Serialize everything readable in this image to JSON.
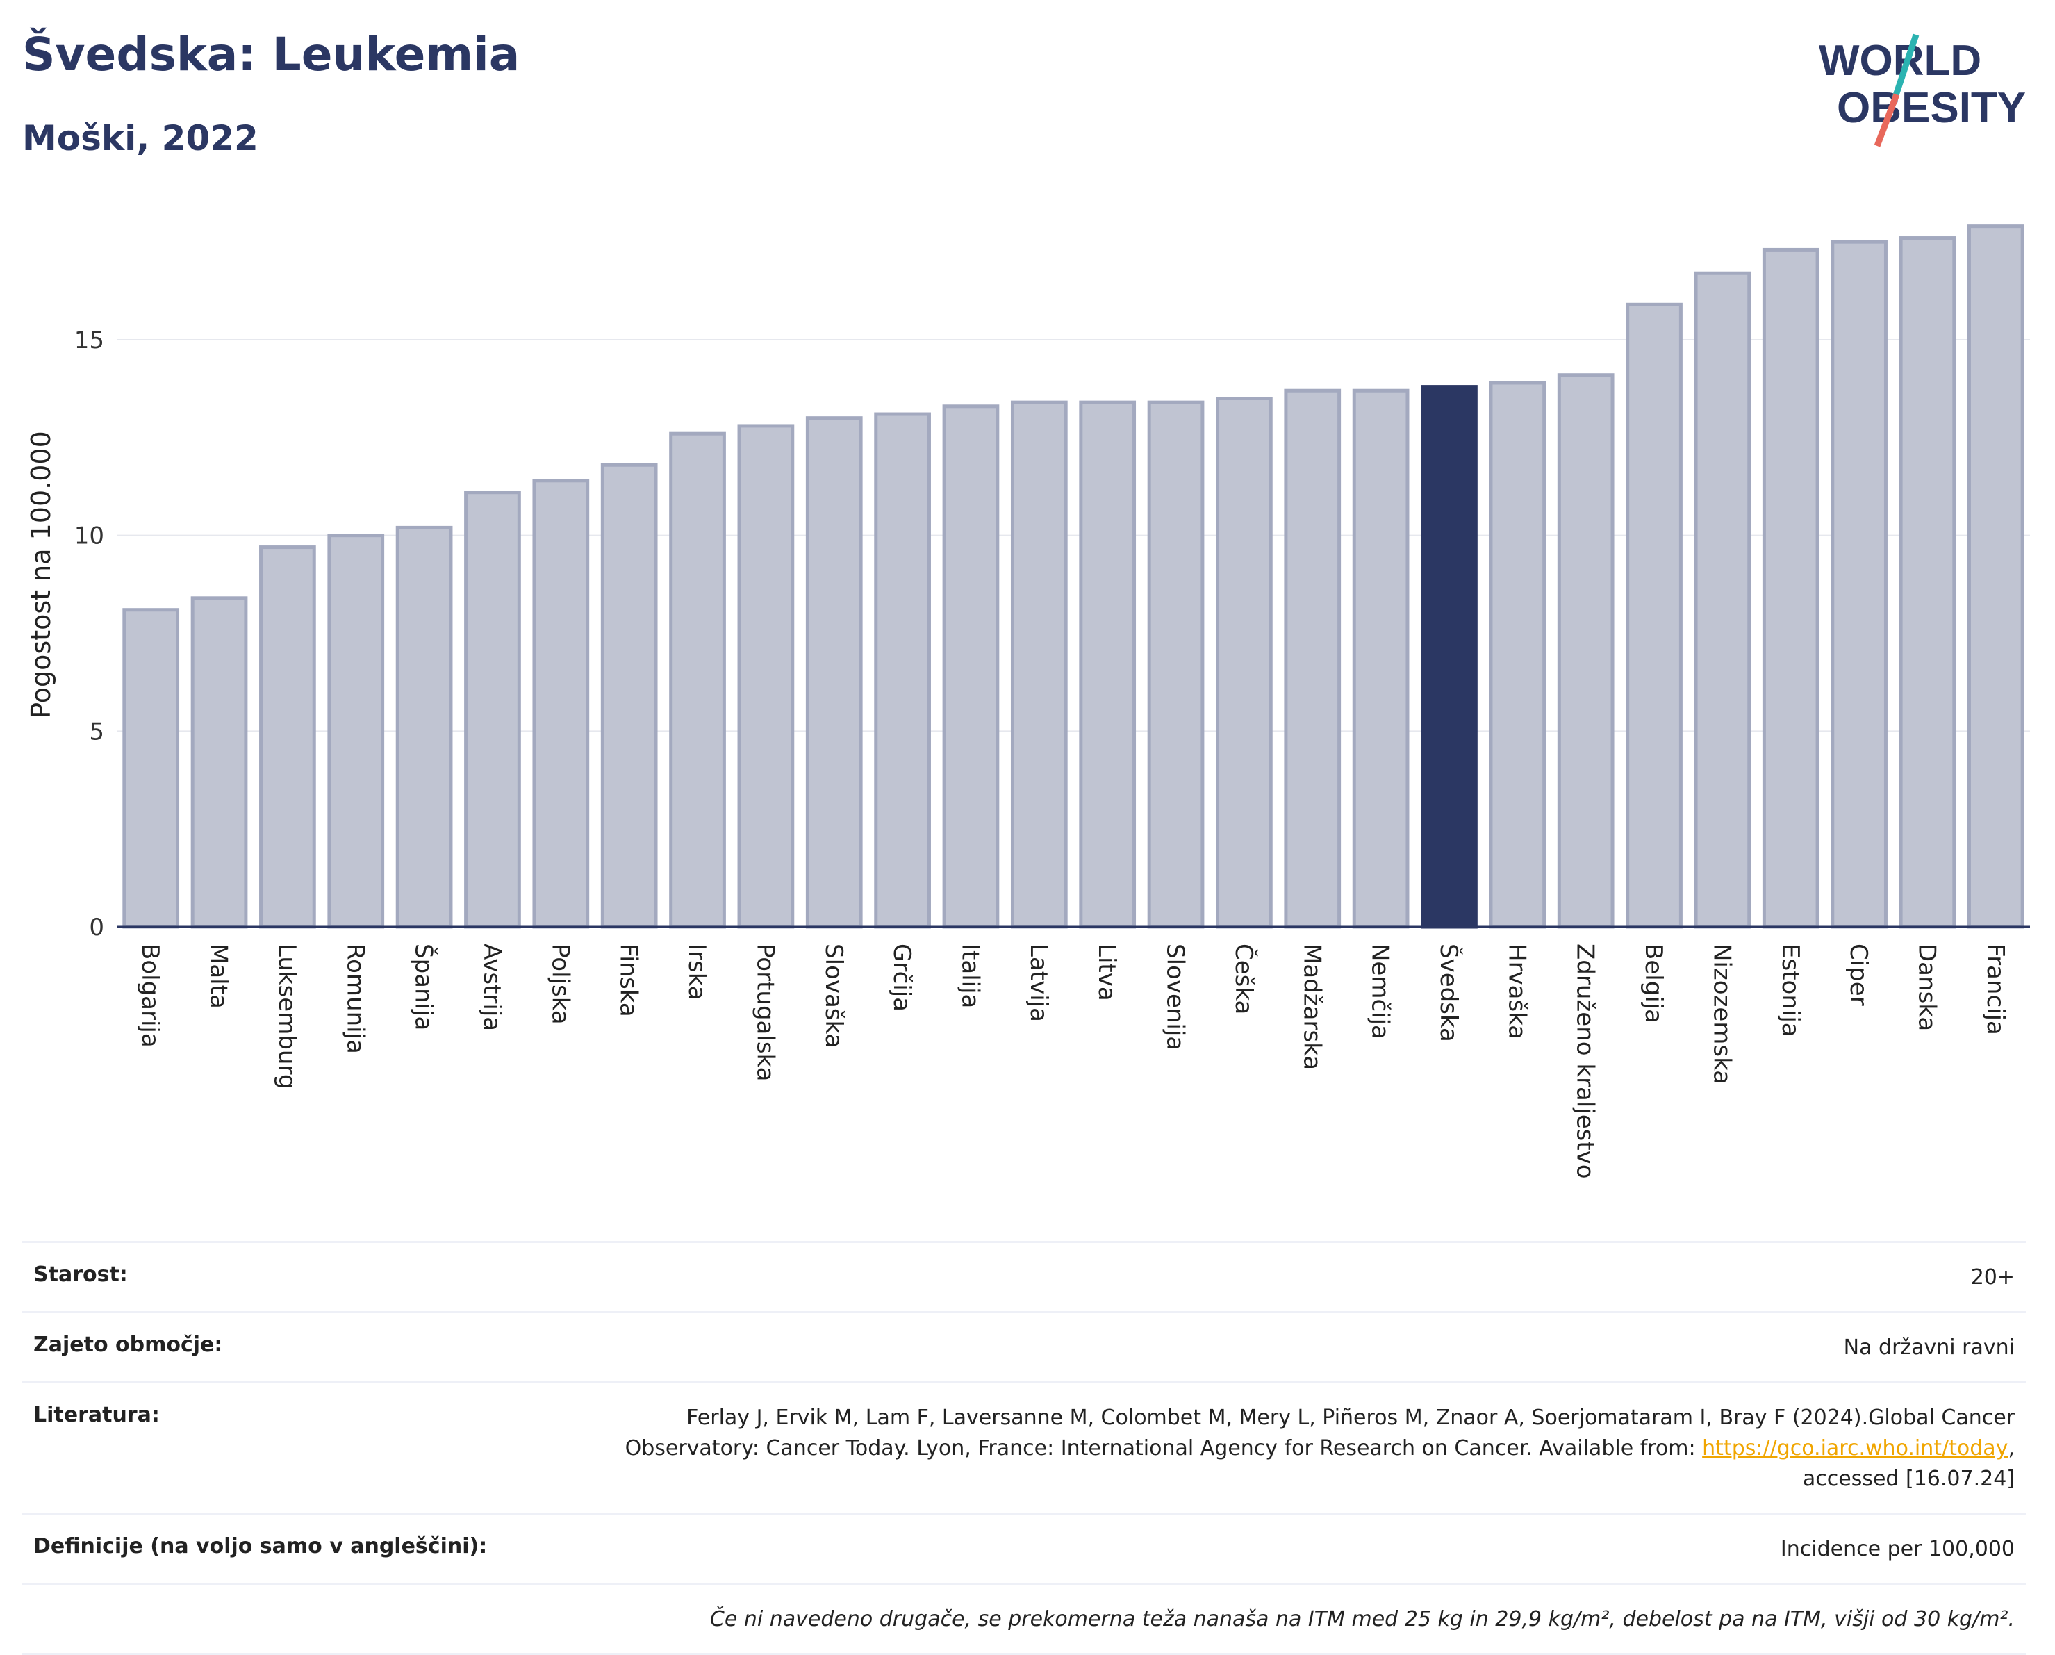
{
  "header": {
    "title": "Švedska: Leukemia",
    "subtitle": "Moški, 2022"
  },
  "logo": {
    "line1": "WORLD",
    "line2": "OBESITY",
    "colors": {
      "text": "#2b3763",
      "slash_teal": "#2bb3b1",
      "slash_red": "#e8685b"
    }
  },
  "chart_data": {
    "type": "bar",
    "ylabel": "Pogostost na 100.000",
    "xlabel": "",
    "ylim": [
      0,
      18
    ],
    "yticks": [
      0,
      5,
      10,
      15
    ],
    "grid": true,
    "highlight": "Švedska",
    "colors": {
      "bar": "#c0c4d2",
      "bar_edge": "#a3a9bf",
      "highlight": "#2b3763",
      "grid": "#e6e8ee",
      "axis": "#2b3763"
    },
    "categories": [
      "Bolgarija",
      "Malta",
      "Luksemburg",
      "Romunija",
      "Španija",
      "Avstrija",
      "Poljska",
      "Finska",
      "Irska",
      "Portugalska",
      "Slovaška",
      "Grčija",
      "Italija",
      "Latvija",
      "Litva",
      "Slovenija",
      "Češka",
      "Madžarska",
      "Nemčija",
      "Švedska",
      "Hrvaška",
      "Združeno kraljestvo",
      "Belgija",
      "Nizozemska",
      "Estonija",
      "Ciper",
      "Danska",
      "Francija"
    ],
    "values": [
      8.1,
      8.4,
      9.7,
      10.0,
      10.2,
      11.1,
      11.4,
      11.8,
      12.6,
      12.8,
      13.0,
      13.1,
      13.3,
      13.4,
      13.4,
      13.4,
      13.5,
      13.7,
      13.7,
      13.8,
      13.9,
      14.1,
      15.9,
      16.7,
      17.3,
      17.5,
      17.6,
      17.9
    ]
  },
  "info": {
    "age_label": "Starost:",
    "age_value": "20+",
    "coverage_label": "Zajeto območje:",
    "coverage_value": "Na državni ravni",
    "ref_label": "Literatura:",
    "ref_text_1": "Ferlay J, Ervik M, Lam F, Laversanne M, Colombet M, Mery L, Piñeros M, Znaor A, Soerjomataram I, Bray F (2024).Global Cancer",
    "ref_text_2": "Observatory: Cancer Today. Lyon, France: International Agency for Research on Cancer. Available from: ",
    "ref_link": "https://gco.iarc.who.int/today",
    "ref_text_3": ",",
    "ref_text_4": "accessed [16.07.24]",
    "def_label": "Definicije (na voljo samo v angleščini):",
    "def_value": "Incidence per 100,000",
    "note": "Če ni navedeno drugače, se prekomerna teža nanaša na ITM med 25 kg in 29,9 kg/m², debelost pa na ITM, višji od 30 kg/m²."
  }
}
